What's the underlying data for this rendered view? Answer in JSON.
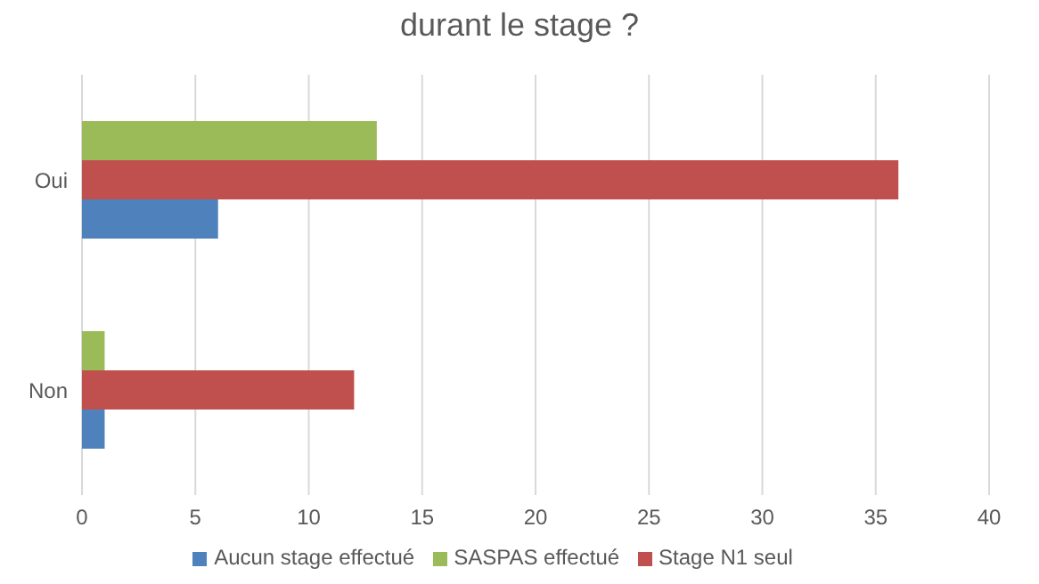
{
  "chart_data": {
    "type": "bar",
    "orientation": "horizontal",
    "title": "durant le stage ?",
    "categories": [
      "Oui",
      "Non"
    ],
    "series": [
      {
        "name": "SASPAS effectué",
        "color": "#9bbb59",
        "values": [
          13,
          1
        ]
      },
      {
        "name": "Stage N1 seul",
        "color": "#c0504d",
        "values": [
          36,
          12
        ]
      },
      {
        "name": "Aucun stage effectué",
        "color": "#4f81bd",
        "values": [
          6,
          1
        ]
      }
    ],
    "xlim": [
      0,
      40
    ],
    "xticks": [
      0,
      5,
      10,
      15,
      20,
      25,
      30,
      35,
      40
    ],
    "grid": "x",
    "legend": "bottom"
  }
}
